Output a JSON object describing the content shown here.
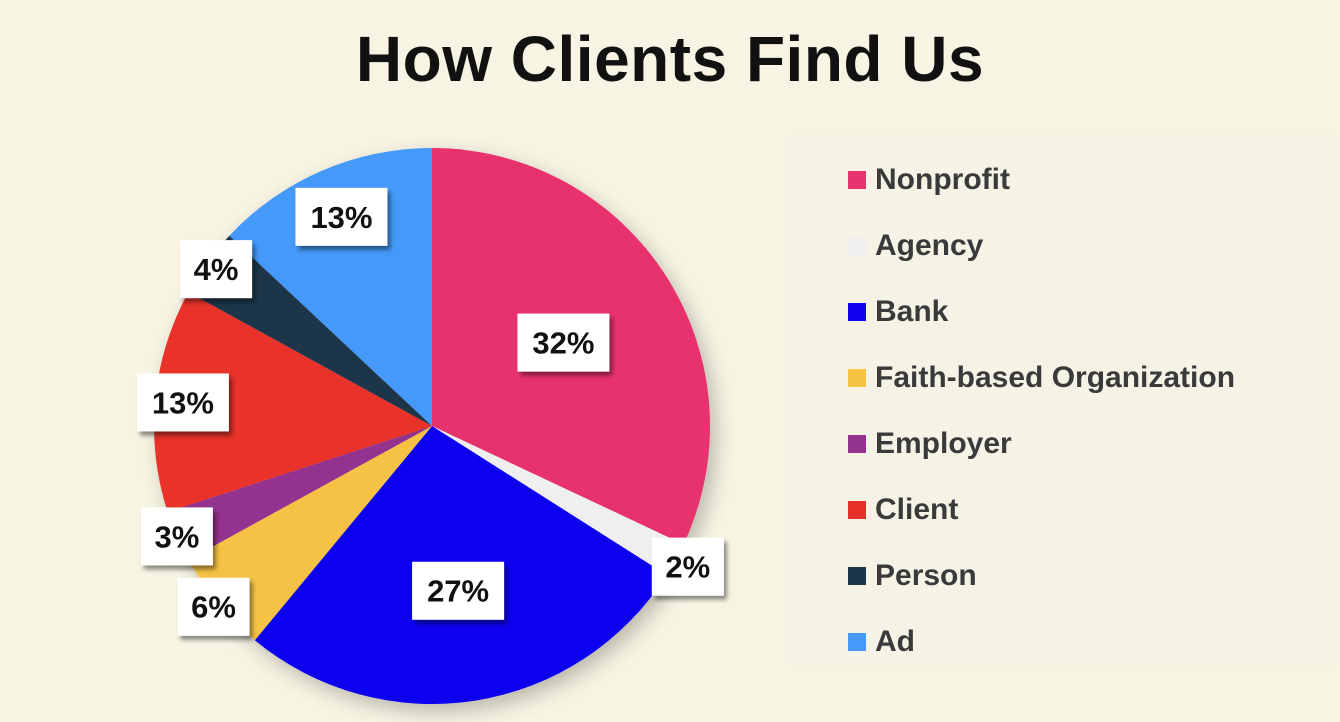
{
  "chart_data": {
    "type": "pie",
    "title": "How Clients Find Us",
    "legend_position": "right",
    "slices": [
      {
        "name": "Nonprofit",
        "value": 32,
        "label": "32%",
        "color": "#e8336e"
      },
      {
        "name": "Agency",
        "value": 2,
        "label": "2%",
        "color": "#f0efef"
      },
      {
        "name": "Bank",
        "value": 27,
        "label": "27%",
        "color": "#1100ef"
      },
      {
        "name": "Faith-based Organization",
        "value": 6,
        "label": "6%",
        "color": "#f5c244"
      },
      {
        "name": "Employer",
        "value": 3,
        "label": "3%",
        "color": "#94338f"
      },
      {
        "name": "Client",
        "value": 13,
        "label": "13%",
        "color": "#e8302a"
      },
      {
        "name": "Person",
        "value": 4,
        "label": "4%",
        "color": "#1c3548"
      },
      {
        "name": "Ad",
        "value": 13,
        "label": "13%",
        "color": "#4599f9"
      }
    ]
  }
}
